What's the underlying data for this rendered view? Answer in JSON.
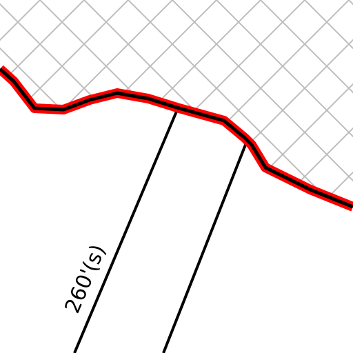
{
  "labels": [
    {
      "text": "260'(s)"
    }
  ]
}
